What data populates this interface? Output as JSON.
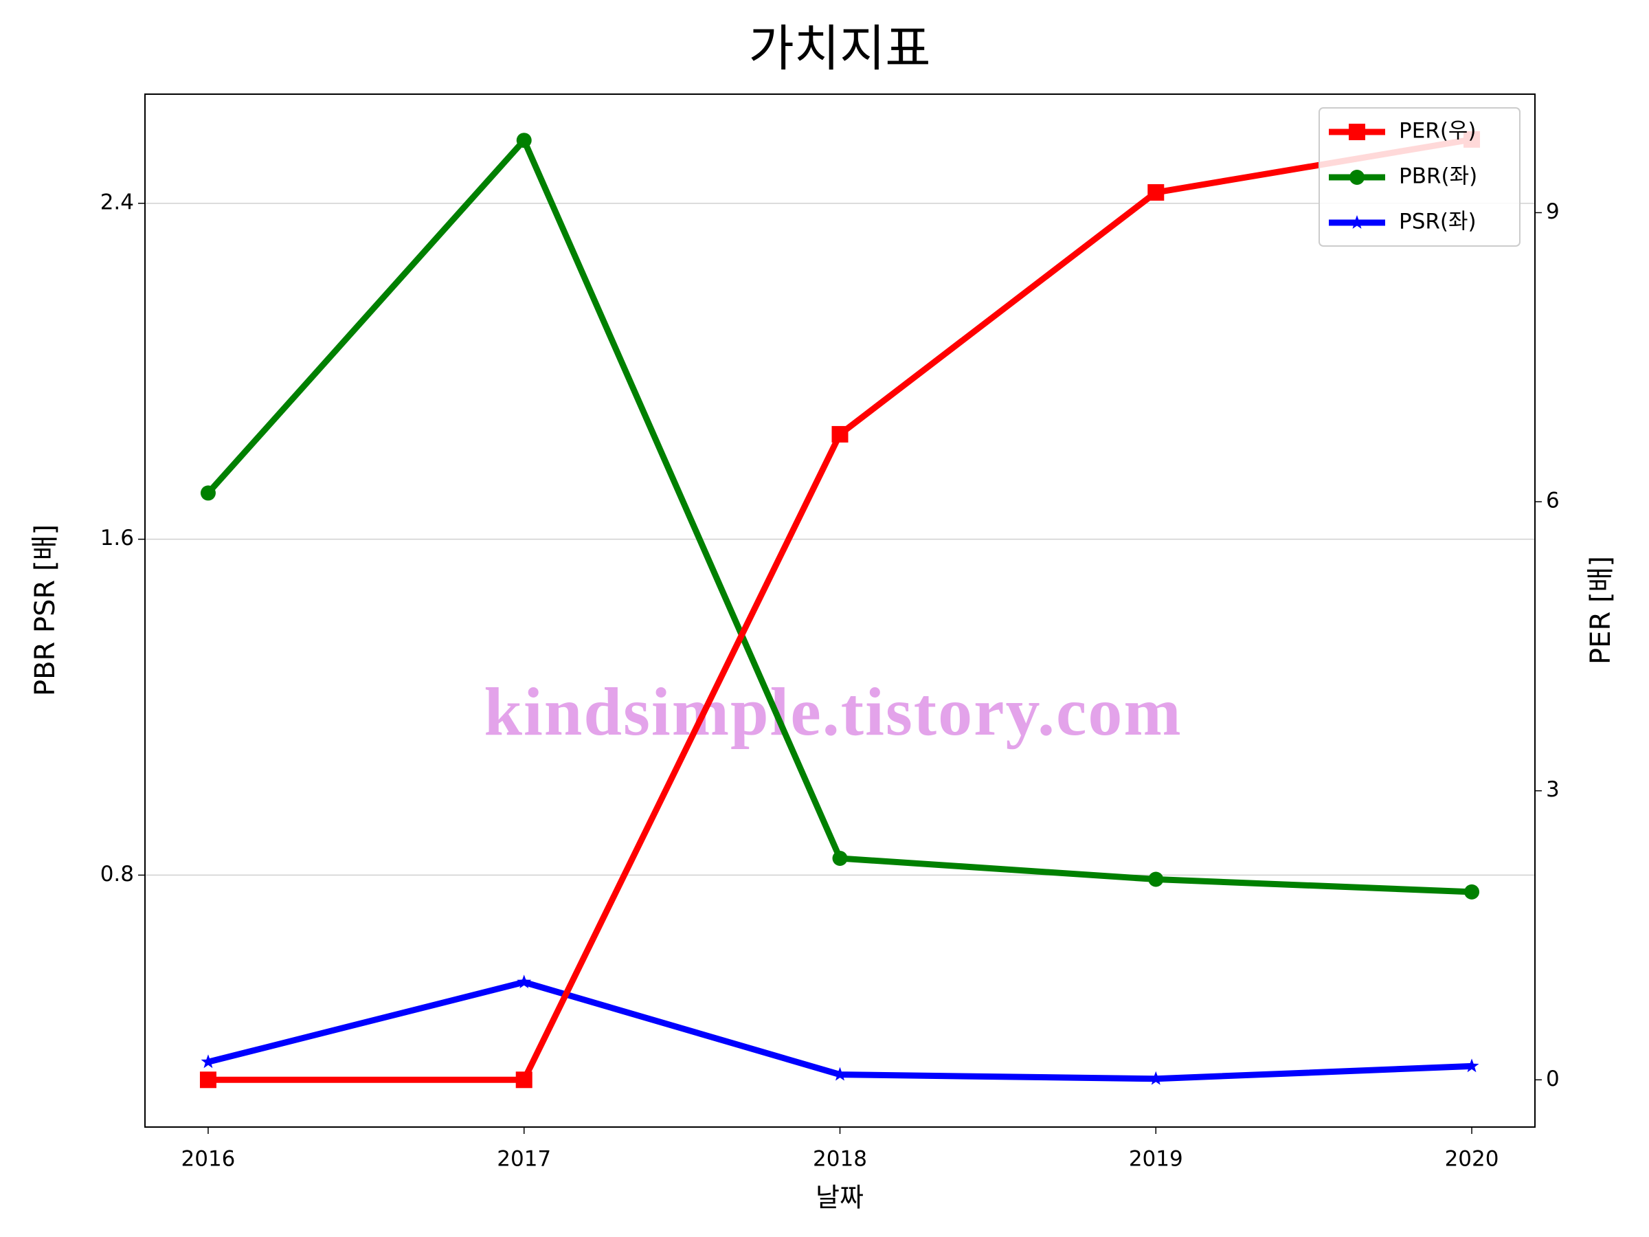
{
  "chart_data": {
    "type": "line",
    "title": "가치지표",
    "x_label": "날짜",
    "y_label": "PBR PSR [배]",
    "y2_label": "PER [배]",
    "y_label_color": "#008000",
    "y2_label_color": "#ff0000",
    "watermark": "kindsimple.tistory.com",
    "x": [
      2016,
      2017,
      2018,
      2019,
      2020
    ],
    "xlim": [
      2015.8,
      2020.2
    ],
    "xticks": [
      2016,
      2017,
      2018,
      2019,
      2020
    ],
    "ylim": [
      0.2,
      2.66
    ],
    "yticks": [
      0.8,
      1.6,
      2.4
    ],
    "y2lim": [
      -0.49,
      10.23
    ],
    "y2ticks": [
      0,
      3,
      6,
      9
    ],
    "grid": true,
    "legend": "upper right",
    "series": [
      {
        "name": "PER(우)",
        "color": "#ff0000",
        "marker": "square",
        "axis": "y2",
        "values": [
          0,
          0,
          6.7,
          9.21,
          9.76
        ]
      },
      {
        "name": "PBR(좌)",
        "color": "#008000",
        "marker": "circle",
        "values": [
          1.71,
          2.55,
          0.84,
          0.79,
          0.76
        ]
      },
      {
        "name": "PSR(좌)",
        "color": "#0000ff",
        "marker": "star",
        "values": [
          0.355,
          0.545,
          0.325,
          0.315,
          0.345
        ]
      }
    ]
  }
}
